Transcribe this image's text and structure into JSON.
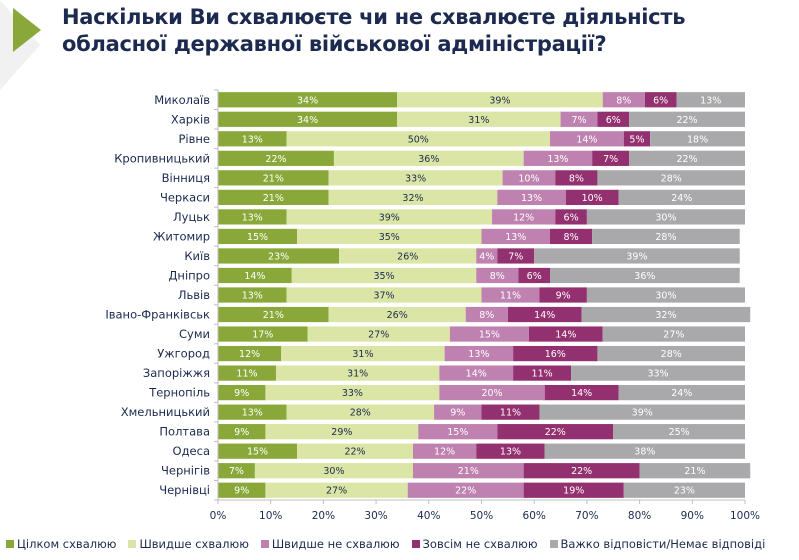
{
  "title_line1": "Наскільки Ви схвалюєте чи не схвалюєте діяльність",
  "title_line2": "обласної державної військової адміністрації?",
  "chart_data": {
    "type": "bar",
    "orientation": "horizontal",
    "stacked": "percent",
    "title": "Наскільки Ви схвалюєте чи не схвалюєте діяльність обласної державної військової адміністрації?",
    "xlabel": "",
    "ylabel": "",
    "xlim": [
      0,
      100
    ],
    "x_ticks": [
      "0%",
      "10%",
      "20%",
      "30%",
      "40%",
      "50%",
      "60%",
      "70%",
      "80%",
      "90%",
      "100%"
    ],
    "grid": false,
    "legend_position": "bottom",
    "categories": [
      "Миколаїв",
      "Харків",
      "Рівне",
      "Кропивницький",
      "Вінниця",
      "Черкаси",
      "Луцьк",
      "Житомир",
      "Київ",
      "Дніпро",
      "Львів",
      "Івано-Франківськ",
      "Суми",
      "Ужгород",
      "Запоріжжя",
      "Тернопіль",
      "Хмельницький",
      "Полтава",
      "Одеса",
      "Чернігів",
      "Чернівці"
    ],
    "series": [
      {
        "name": "Цілком схвалюю",
        "color": "#8aa83a",
        "label_color": "#ffffff",
        "values": [
          34,
          34,
          13,
          22,
          21,
          21,
          13,
          15,
          23,
          14,
          13,
          21,
          17,
          12,
          11,
          9,
          13,
          9,
          15,
          7,
          9
        ]
      },
      {
        "name": "Швидше схвалюю",
        "color": "#dbe6a6",
        "label_color": "#1b2a4e",
        "values": [
          39,
          31,
          50,
          36,
          33,
          32,
          39,
          35,
          26,
          35,
          37,
          26,
          27,
          31,
          31,
          33,
          28,
          29,
          22,
          30,
          27
        ]
      },
      {
        "name": "Швидше не схвалюю",
        "color": "#bf82b0",
        "label_color": "#ffffff",
        "values": [
          8,
          7,
          14,
          13,
          10,
          13,
          12,
          13,
          4,
          8,
          11,
          8,
          15,
          13,
          14,
          20,
          9,
          15,
          12,
          21,
          22
        ]
      },
      {
        "name": "Зовсім не схвалюю",
        "color": "#93306f",
        "label_color": "#ffffff",
        "values": [
          6,
          6,
          5,
          7,
          8,
          10,
          6,
          8,
          7,
          6,
          9,
          14,
          14,
          16,
          11,
          14,
          11,
          22,
          13,
          22,
          19
        ]
      },
      {
        "name": "Важко відповісти/Немає відповіді",
        "color": "#a9a9ab",
        "label_color": "#ffffff",
        "values": [
          13,
          22,
          18,
          22,
          28,
          24,
          30,
          28,
          39,
          36,
          30,
          32,
          27,
          28,
          33,
          24,
          39,
          25,
          38,
          21,
          23
        ]
      }
    ]
  }
}
